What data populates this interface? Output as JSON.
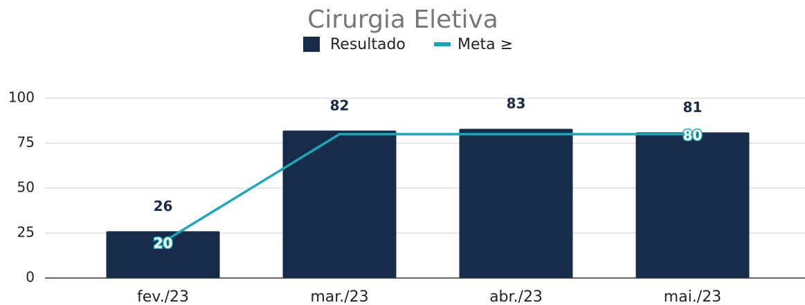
{
  "chart_data": {
    "type": "bar",
    "title": "Cirurgia Eletiva",
    "categories": [
      "fev./23",
      "mar./23",
      "abr./23",
      "mai./23"
    ],
    "series": [
      {
        "name": "Resultado",
        "type": "bar",
        "color": "#172b4a",
        "values": [
          26,
          82,
          83,
          81
        ]
      },
      {
        "name": "Meta ≥",
        "type": "line",
        "color": "#17a9b6",
        "values": [
          20,
          80,
          80,
          80
        ],
        "value_labels": [
          "20",
          null,
          null,
          "80"
        ]
      }
    ],
    "ylim": [
      0,
      100
    ],
    "yticks": [
      0,
      25,
      50,
      75,
      100
    ],
    "grid": true,
    "legend": "top"
  }
}
